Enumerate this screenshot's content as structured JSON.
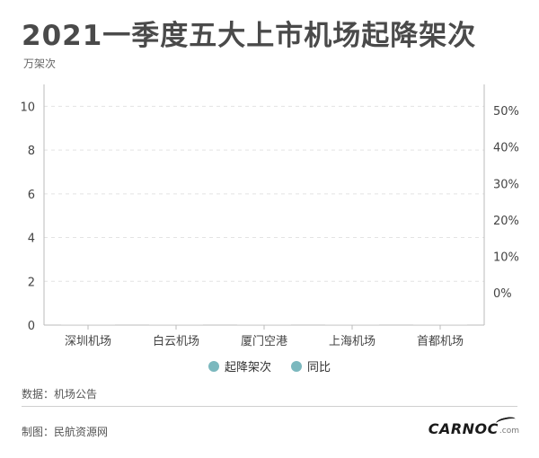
{
  "title": "2021一季度五大上市机场起降架次",
  "unit_label": "万架次",
  "chart_data": {
    "type": "bar",
    "categories": [
      "深圳机场",
      "白云机场",
      "厦门空港",
      "上海机场",
      "首都机场"
    ],
    "series": [
      {
        "name": "起降架次",
        "values": [
          0,
          0,
          0,
          0,
          0
        ],
        "color": "#7bb8be"
      },
      {
        "name": "同比",
        "values": [
          null,
          null,
          null,
          null,
          null
        ],
        "color": "#7bb8be"
      }
    ],
    "ylim": [
      0,
      11
    ],
    "y_ticks": [
      0,
      2,
      4,
      6,
      8,
      10
    ],
    "y2lim": [
      -8.9,
      57.2
    ],
    "y2_ticks": [
      "0%",
      "10%",
      "20%",
      "30%",
      "40%",
      "50%"
    ],
    "y2_tick_values": [
      0,
      10,
      20,
      30,
      40,
      50
    ],
    "grid": true
  },
  "legend": [
    {
      "label": "起降架次",
      "color": "#7bb8be"
    },
    {
      "label": "同比",
      "color": "#7bb8be"
    }
  ],
  "source": "数据：机场公告",
  "maker": "制图：民航资源网",
  "logo": {
    "main": "CARNOC",
    "sub": ".com"
  }
}
